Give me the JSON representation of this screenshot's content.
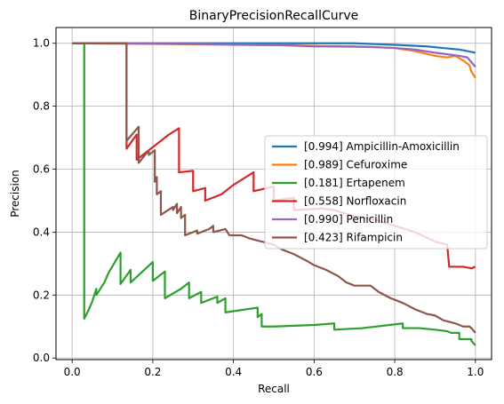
{
  "chart_data": {
    "type": "line",
    "title": "BinaryPrecisionRecallCurve",
    "xlabel": "Recall",
    "ylabel": "Precision",
    "xlim": [
      -0.04,
      1.04
    ],
    "ylim": [
      -0.005,
      1.05
    ],
    "xticks": [
      0.0,
      0.2,
      0.4,
      0.6,
      0.8,
      1.0
    ],
    "yticks": [
      0.0,
      0.2,
      0.4,
      0.6,
      0.8,
      1.0
    ],
    "xtick_labels": [
      "0.0",
      "0.2",
      "0.4",
      "0.6",
      "0.8",
      "1.0"
    ],
    "ytick_labels": [
      "0.0",
      "0.2",
      "0.4",
      "0.6",
      "0.8",
      "1.0"
    ],
    "grid": true,
    "legend_position": "center-right",
    "series": [
      {
        "name": "[0.994] Ampicillin-Amoxicillin",
        "color": "#1f77b4",
        "points": [
          [
            0.0,
            1.0
          ],
          [
            0.5,
            1.0
          ],
          [
            0.7,
            1.0
          ],
          [
            0.8,
            0.995
          ],
          [
            0.88,
            0.99
          ],
          [
            0.92,
            0.985
          ],
          [
            0.96,
            0.98
          ],
          [
            0.98,
            0.975
          ],
          [
            1.0,
            0.97
          ]
        ]
      },
      {
        "name": "[0.989] Cefuroxime",
        "color": "#ff7f0e",
        "points": [
          [
            0.0,
            1.0
          ],
          [
            0.2,
            0.998
          ],
          [
            0.4,
            0.995
          ],
          [
            0.55,
            0.993
          ],
          [
            0.65,
            0.99
          ],
          [
            0.75,
            0.988
          ],
          [
            0.8,
            0.985
          ],
          [
            0.85,
            0.975
          ],
          [
            0.9,
            0.96
          ],
          [
            0.93,
            0.955
          ],
          [
            0.95,
            0.96
          ],
          [
            0.97,
            0.945
          ],
          [
            0.985,
            0.93
          ],
          [
            0.99,
            0.91
          ],
          [
            1.0,
            0.89
          ]
        ]
      },
      {
        "name": "[0.181] Ertapenem",
        "color": "#2ca02c",
        "points": [
          [
            0.0,
            1.0
          ],
          [
            0.03,
            1.0
          ],
          [
            0.03,
            0.125
          ],
          [
            0.04,
            0.15
          ],
          [
            0.05,
            0.18
          ],
          [
            0.06,
            0.22
          ],
          [
            0.06,
            0.2
          ],
          [
            0.08,
            0.24
          ],
          [
            0.09,
            0.27
          ],
          [
            0.12,
            0.335
          ],
          [
            0.12,
            0.235
          ],
          [
            0.145,
            0.28
          ],
          [
            0.145,
            0.24
          ],
          [
            0.2,
            0.305
          ],
          [
            0.2,
            0.245
          ],
          [
            0.23,
            0.275
          ],
          [
            0.23,
            0.19
          ],
          [
            0.25,
            0.205
          ],
          [
            0.27,
            0.22
          ],
          [
            0.29,
            0.24
          ],
          [
            0.29,
            0.19
          ],
          [
            0.32,
            0.21
          ],
          [
            0.32,
            0.175
          ],
          [
            0.36,
            0.195
          ],
          [
            0.36,
            0.175
          ],
          [
            0.38,
            0.19
          ],
          [
            0.38,
            0.145
          ],
          [
            0.46,
            0.16
          ],
          [
            0.46,
            0.13
          ],
          [
            0.47,
            0.14
          ],
          [
            0.47,
            0.1
          ],
          [
            0.5,
            0.1
          ],
          [
            0.6,
            0.105
          ],
          [
            0.65,
            0.11
          ],
          [
            0.65,
            0.09
          ],
          [
            0.72,
            0.095
          ],
          [
            0.82,
            0.11
          ],
          [
            0.82,
            0.095
          ],
          [
            0.86,
            0.095
          ],
          [
            0.9,
            0.09
          ],
          [
            0.93,
            0.085
          ],
          [
            0.94,
            0.08
          ],
          [
            0.96,
            0.08
          ],
          [
            0.96,
            0.06
          ],
          [
            0.99,
            0.06
          ],
          [
            0.99,
            0.055
          ],
          [
            1.0,
            0.04
          ]
        ]
      },
      {
        "name": "[0.558] Norfloxacin",
        "color": "#d62728",
        "points": [
          [
            0.0,
            1.0
          ],
          [
            0.135,
            1.0
          ],
          [
            0.135,
            0.665
          ],
          [
            0.16,
            0.71
          ],
          [
            0.16,
            0.63
          ],
          [
            0.2,
            0.67
          ],
          [
            0.24,
            0.71
          ],
          [
            0.265,
            0.73
          ],
          [
            0.265,
            0.59
          ],
          [
            0.3,
            0.595
          ],
          [
            0.3,
            0.53
          ],
          [
            0.33,
            0.54
          ],
          [
            0.33,
            0.5
          ],
          [
            0.37,
            0.52
          ],
          [
            0.4,
            0.55
          ],
          [
            0.45,
            0.59
          ],
          [
            0.45,
            0.53
          ],
          [
            0.5,
            0.545
          ],
          [
            0.5,
            0.5
          ],
          [
            0.55,
            0.51
          ],
          [
            0.55,
            0.47
          ],
          [
            0.62,
            0.475
          ],
          [
            0.65,
            0.47
          ],
          [
            0.7,
            0.45
          ],
          [
            0.75,
            0.44
          ],
          [
            0.8,
            0.42
          ],
          [
            0.85,
            0.4
          ],
          [
            0.9,
            0.37
          ],
          [
            0.93,
            0.36
          ],
          [
            0.935,
            0.29
          ],
          [
            0.97,
            0.29
          ],
          [
            0.99,
            0.285
          ],
          [
            1.0,
            0.29
          ]
        ]
      },
      {
        "name": "[0.990] Penicillin",
        "color": "#9467bd",
        "points": [
          [
            0.0,
            1.0
          ],
          [
            0.3,
            0.998
          ],
          [
            0.5,
            0.995
          ],
          [
            0.6,
            0.99
          ],
          [
            0.7,
            0.99
          ],
          [
            0.8,
            0.985
          ],
          [
            0.85,
            0.98
          ],
          [
            0.9,
            0.97
          ],
          [
            0.93,
            0.965
          ],
          [
            0.96,
            0.96
          ],
          [
            0.98,
            0.955
          ],
          [
            0.99,
            0.94
          ],
          [
            1.0,
            0.925
          ]
        ]
      },
      {
        "name": "[0.423] Rifampicin",
        "color": "#8c564b",
        "points": [
          [
            0.0,
            1.0
          ],
          [
            0.135,
            1.0
          ],
          [
            0.135,
            0.69
          ],
          [
            0.165,
            0.735
          ],
          [
            0.165,
            0.62
          ],
          [
            0.19,
            0.66
          ],
          [
            0.19,
            0.645
          ],
          [
            0.205,
            0.66
          ],
          [
            0.205,
            0.56
          ],
          [
            0.21,
            0.575
          ],
          [
            0.21,
            0.52
          ],
          [
            0.22,
            0.53
          ],
          [
            0.22,
            0.455
          ],
          [
            0.25,
            0.48
          ],
          [
            0.25,
            0.47
          ],
          [
            0.26,
            0.49
          ],
          [
            0.26,
            0.46
          ],
          [
            0.27,
            0.48
          ],
          [
            0.27,
            0.445
          ],
          [
            0.28,
            0.455
          ],
          [
            0.28,
            0.39
          ],
          [
            0.31,
            0.405
          ],
          [
            0.31,
            0.395
          ],
          [
            0.34,
            0.41
          ],
          [
            0.35,
            0.42
          ],
          [
            0.35,
            0.4
          ],
          [
            0.38,
            0.41
          ],
          [
            0.39,
            0.39
          ],
          [
            0.42,
            0.39
          ],
          [
            0.44,
            0.38
          ],
          [
            0.47,
            0.37
          ],
          [
            0.5,
            0.36
          ],
          [
            0.52,
            0.345
          ],
          [
            0.55,
            0.33
          ],
          [
            0.58,
            0.31
          ],
          [
            0.6,
            0.295
          ],
          [
            0.63,
            0.28
          ],
          [
            0.66,
            0.26
          ],
          [
            0.68,
            0.24
          ],
          [
            0.7,
            0.23
          ],
          [
            0.74,
            0.23
          ],
          [
            0.76,
            0.21
          ],
          [
            0.79,
            0.19
          ],
          [
            0.82,
            0.175
          ],
          [
            0.85,
            0.155
          ],
          [
            0.88,
            0.14
          ],
          [
            0.9,
            0.135
          ],
          [
            0.92,
            0.12
          ],
          [
            0.95,
            0.11
          ],
          [
            0.97,
            0.1
          ],
          [
            0.985,
            0.1
          ],
          [
            0.99,
            0.095
          ],
          [
            1.0,
            0.08
          ]
        ]
      }
    ]
  }
}
